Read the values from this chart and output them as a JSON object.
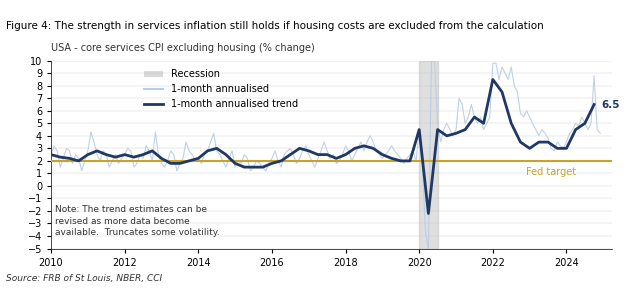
{
  "title": "Figure 4: The strength in services inflation still holds if housing costs are excluded from the calculation",
  "subtitle": "USA - core services CPI excluding housing (% change)",
  "source": "Source: FRB of St Louis, NBER, CCI",
  "note": "Note: The trend estimates can be\nrevised as more data become\navailable.  Truncates some volatility.",
  "fed_target_label": "Fed target",
  "fed_target_value": 2.0,
  "last_value_label": "6.5",
  "ylim": [
    -5,
    10
  ],
  "yticks": [
    -5,
    -4,
    -3,
    -2,
    -1,
    0,
    1,
    2,
    3,
    4,
    5,
    6,
    7,
    8,
    9,
    10
  ],
  "xlim_start": 2010.0,
  "xlim_end": 2025.25,
  "recession_periods": [
    [
      2020.0,
      2020.5
    ]
  ],
  "title_bg_color": "#dce6f1",
  "recession_color": "#c0c0c0",
  "raw_line_color": "#b8cce4",
  "trend_line_color": "#1f3864",
  "fed_target_color": "#c9a227",
  "bg_color": "#ffffff",
  "raw_data_x": [
    2010.0,
    2010.083,
    2010.167,
    2010.25,
    2010.333,
    2010.417,
    2010.5,
    2010.583,
    2010.667,
    2010.75,
    2010.833,
    2010.917,
    2011.0,
    2011.083,
    2011.167,
    2011.25,
    2011.333,
    2011.417,
    2011.5,
    2011.583,
    2011.667,
    2011.75,
    2011.833,
    2011.917,
    2012.0,
    2012.083,
    2012.167,
    2012.25,
    2012.333,
    2012.417,
    2012.5,
    2012.583,
    2012.667,
    2012.75,
    2012.833,
    2012.917,
    2013.0,
    2013.083,
    2013.167,
    2013.25,
    2013.333,
    2013.417,
    2013.5,
    2013.583,
    2013.667,
    2013.75,
    2013.833,
    2013.917,
    2014.0,
    2014.083,
    2014.167,
    2014.25,
    2014.333,
    2014.417,
    2014.5,
    2014.583,
    2014.667,
    2014.75,
    2014.833,
    2014.917,
    2015.0,
    2015.083,
    2015.167,
    2015.25,
    2015.333,
    2015.417,
    2015.5,
    2015.583,
    2015.667,
    2015.75,
    2015.833,
    2015.917,
    2016.0,
    2016.083,
    2016.167,
    2016.25,
    2016.333,
    2016.417,
    2016.5,
    2016.583,
    2016.667,
    2016.75,
    2016.833,
    2016.917,
    2017.0,
    2017.083,
    2017.167,
    2017.25,
    2017.333,
    2017.417,
    2017.5,
    2017.583,
    2017.667,
    2017.75,
    2017.833,
    2017.917,
    2018.0,
    2018.083,
    2018.167,
    2018.25,
    2018.333,
    2018.417,
    2018.5,
    2018.583,
    2018.667,
    2018.75,
    2018.833,
    2018.917,
    2019.0,
    2019.083,
    2019.167,
    2019.25,
    2019.333,
    2019.417,
    2019.5,
    2019.583,
    2019.667,
    2019.75,
    2019.833,
    2019.917,
    2020.0,
    2020.083,
    2020.167,
    2020.25,
    2020.333,
    2020.417,
    2020.5,
    2020.583,
    2020.667,
    2020.75,
    2020.833,
    2020.917,
    2021.0,
    2021.083,
    2021.167,
    2021.25,
    2021.333,
    2021.417,
    2021.5,
    2021.583,
    2021.667,
    2021.75,
    2021.833,
    2021.917,
    2022.0,
    2022.083,
    2022.167,
    2022.25,
    2022.333,
    2022.417,
    2022.5,
    2022.583,
    2022.667,
    2022.75,
    2022.833,
    2022.917,
    2023.0,
    2023.083,
    2023.167,
    2023.25,
    2023.333,
    2023.417,
    2023.5,
    2023.583,
    2023.667,
    2023.75,
    2023.833,
    2023.917,
    2024.0,
    2024.083,
    2024.167,
    2024.25,
    2024.333,
    2024.417,
    2024.5,
    2024.583,
    2024.667,
    2024.75,
    2024.833,
    2024.917
  ],
  "raw_data_y": [
    2.5,
    3.2,
    2.8,
    1.5,
    2.2,
    3.0,
    2.8,
    1.8,
    2.5,
    2.2,
    1.2,
    2.0,
    2.8,
    4.3,
    3.5,
    2.5,
    2.0,
    2.8,
    2.5,
    1.5,
    2.0,
    2.5,
    1.8,
    2.2,
    2.5,
    3.0,
    2.8,
    1.5,
    1.8,
    2.5,
    2.2,
    3.2,
    2.8,
    2.0,
    4.3,
    2.5,
    1.8,
    1.5,
    2.0,
    2.8,
    2.5,
    1.2,
    1.8,
    2.2,
    3.5,
    2.8,
    2.5,
    2.0,
    2.2,
    1.8,
    2.5,
    2.8,
    3.5,
    4.2,
    2.8,
    2.5,
    2.0,
    1.5,
    2.2,
    2.8,
    1.5,
    2.0,
    1.8,
    2.5,
    2.2,
    1.2,
    1.5,
    2.0,
    1.8,
    1.5,
    1.2,
    1.8,
    2.2,
    2.8,
    2.0,
    1.5,
    2.5,
    2.8,
    3.0,
    2.5,
    1.8,
    2.2,
    2.8,
    3.2,
    2.5,
    2.0,
    1.5,
    2.2,
    2.8,
    3.5,
    2.8,
    2.2,
    2.5,
    1.8,
    2.0,
    2.5,
    3.2,
    2.8,
    2.0,
    2.5,
    3.0,
    3.5,
    2.8,
    3.5,
    4.0,
    3.5,
    2.8,
    2.5,
    2.2,
    2.5,
    2.8,
    3.2,
    2.8,
    2.5,
    2.2,
    1.8,
    2.2,
    2.5,
    2.8,
    2.0,
    4.5,
    2.0,
    -3.5,
    -5.2,
    10.0,
    10.0,
    5.0,
    3.5,
    4.5,
    5.0,
    4.5,
    4.0,
    4.5,
    7.0,
    6.5,
    5.0,
    5.5,
    6.5,
    5.5,
    5.0,
    5.5,
    4.5,
    5.0,
    5.5,
    9.8,
    9.8,
    8.5,
    9.5,
    9.0,
    8.5,
    9.5,
    8.0,
    7.5,
    5.8,
    5.5,
    6.0,
    5.5,
    5.0,
    4.5,
    4.0,
    4.5,
    4.2,
    3.8,
    3.0,
    2.8,
    3.5,
    3.2,
    3.0,
    3.5,
    4.2,
    4.5,
    5.0,
    4.8,
    5.5,
    5.0,
    4.5,
    5.0,
    8.8,
    4.5,
    4.2
  ],
  "trend_data_x": [
    2010.0,
    2010.25,
    2010.5,
    2010.75,
    2011.0,
    2011.25,
    2011.5,
    2011.75,
    2012.0,
    2012.25,
    2012.5,
    2012.75,
    2013.0,
    2013.25,
    2013.5,
    2013.75,
    2014.0,
    2014.25,
    2014.5,
    2014.75,
    2015.0,
    2015.25,
    2015.5,
    2015.75,
    2016.0,
    2016.25,
    2016.5,
    2016.75,
    2017.0,
    2017.25,
    2017.5,
    2017.75,
    2018.0,
    2018.25,
    2018.5,
    2018.75,
    2019.0,
    2019.25,
    2019.5,
    2019.75,
    2020.0,
    2020.25,
    2020.5,
    2020.75,
    2021.0,
    2021.25,
    2021.5,
    2021.75,
    2022.0,
    2022.25,
    2022.5,
    2022.75,
    2023.0,
    2023.25,
    2023.5,
    2023.75,
    2024.0,
    2024.25,
    2024.5,
    2024.75
  ],
  "trend_data_y": [
    2.5,
    2.3,
    2.2,
    2.0,
    2.5,
    2.8,
    2.5,
    2.3,
    2.5,
    2.3,
    2.5,
    2.8,
    2.2,
    1.8,
    1.8,
    2.0,
    2.2,
    2.8,
    3.0,
    2.5,
    1.8,
    1.5,
    1.5,
    1.5,
    1.8,
    2.0,
    2.5,
    3.0,
    2.8,
    2.5,
    2.5,
    2.2,
    2.5,
    3.0,
    3.2,
    3.0,
    2.5,
    2.2,
    2.0,
    2.0,
    4.5,
    -2.2,
    4.5,
    4.0,
    4.2,
    4.5,
    5.5,
    5.0,
    8.5,
    7.5,
    5.0,
    3.5,
    3.0,
    3.5,
    3.5,
    3.0,
    3.0,
    4.5,
    5.0,
    6.5
  ]
}
